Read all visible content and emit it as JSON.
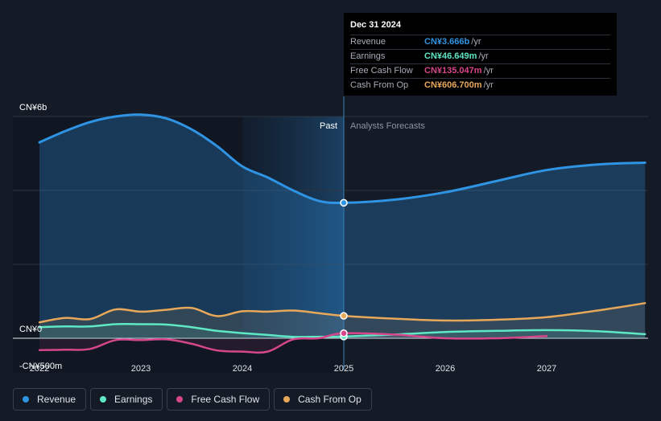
{
  "colors": {
    "background": "#141b26",
    "revenue": "#2f94e3",
    "earnings": "#5ee8c4",
    "free_cash_flow": "#d6468b",
    "cash_from_op": "#e8a85a",
    "past_shade": "#1b3a57",
    "grid": "#2c3440"
  },
  "tooltip": {
    "date": "Dec 31 2024",
    "rows": [
      {
        "name": "Revenue",
        "value": "CN¥3.666b",
        "unit": "/yr",
        "color": "#2f94e3"
      },
      {
        "name": "Earnings",
        "value": "CN¥46.649m",
        "unit": "/yr",
        "color": "#5ee8c4"
      },
      {
        "name": "Free Cash Flow",
        "value": "CN¥135.047m",
        "unit": "/yr",
        "color": "#d6468b"
      },
      {
        "name": "Cash From Op",
        "value": "CN¥606.700m",
        "unit": "/yr",
        "color": "#e8a85a"
      }
    ]
  },
  "legend": [
    {
      "label": "Revenue",
      "color": "#2f94e3"
    },
    {
      "label": "Earnings",
      "color": "#5ee8c4"
    },
    {
      "label": "Free Cash Flow",
      "color": "#d6468b"
    },
    {
      "label": "Cash From Op",
      "color": "#e8a85a"
    }
  ],
  "chart_data": {
    "type": "line",
    "title": "",
    "xlabel": "",
    "ylabel": "",
    "y_unit": "CN¥ billions",
    "xlim": [
      2021.9,
      2027.97
    ],
    "ylim": [
      -0.5,
      6
    ],
    "y_tick_labels": [
      {
        "value": 6,
        "label": "CN¥6b"
      },
      {
        "value": 0,
        "label": "CN¥0"
      },
      {
        "value": -0.5,
        "label": "-CN¥500m"
      }
    ],
    "gridlines_y": [
      6,
      4,
      2,
      0
    ],
    "x_ticks": [
      {
        "value": 2022,
        "label": "2022"
      },
      {
        "value": 2023,
        "label": "2023"
      },
      {
        "value": 2024,
        "label": "2024"
      },
      {
        "value": 2025,
        "label": "2025"
      },
      {
        "value": 2026,
        "label": "2026"
      },
      {
        "value": 2027,
        "label": "2027"
      }
    ],
    "divider_x": 2025,
    "highlight_band": [
      2024,
      2025
    ],
    "past_label": "Past",
    "forecast_label": "Analysts Forecasts",
    "legend_position": "bottom-left",
    "grid": true,
    "series": [
      {
        "name": "Revenue",
        "key": "revenue",
        "x": [
          2022.0,
          2022.25,
          2022.5,
          2022.75,
          2023.0,
          2023.25,
          2023.5,
          2023.75,
          2024.0,
          2024.25,
          2024.5,
          2024.75,
          2025.0,
          2025.5,
          2026.0,
          2026.5,
          2027.0,
          2027.5,
          2027.97
        ],
        "y": [
          5.3,
          5.6,
          5.85,
          6.0,
          6.05,
          5.95,
          5.65,
          5.2,
          4.65,
          4.35,
          4.0,
          3.72,
          3.666,
          3.75,
          3.95,
          4.25,
          4.55,
          4.7,
          4.75
        ]
      },
      {
        "name": "Earnings",
        "key": "earnings",
        "x": [
          2022.0,
          2022.25,
          2022.5,
          2022.75,
          2023.0,
          2023.25,
          2023.5,
          2023.75,
          2024.0,
          2024.25,
          2024.5,
          2024.75,
          2025.0,
          2025.5,
          2026.0,
          2026.5,
          2027.0,
          2027.5,
          2027.97
        ],
        "y": [
          0.3,
          0.32,
          0.32,
          0.38,
          0.38,
          0.37,
          0.3,
          0.2,
          0.14,
          0.09,
          0.04,
          0.04,
          0.046649,
          0.1,
          0.17,
          0.2,
          0.22,
          0.19,
          0.11
        ]
      },
      {
        "name": "Free Cash Flow",
        "key": "free_cash_flow",
        "x": [
          2022.0,
          2022.25,
          2022.5,
          2022.75,
          2023.0,
          2023.25,
          2023.5,
          2023.75,
          2024.0,
          2024.25,
          2024.5,
          2024.75,
          2025.0,
          2025.5,
          2026.0,
          2026.5,
          2027.0
        ],
        "y": [
          -0.32,
          -0.31,
          -0.29,
          -0.05,
          -0.05,
          -0.03,
          -0.15,
          -0.33,
          -0.36,
          -0.36,
          -0.03,
          0.0,
          0.135047,
          0.1,
          0.0,
          0.0,
          0.06
        ]
      },
      {
        "name": "Cash From Op",
        "key": "cash_from_op",
        "x": [
          2022.0,
          2022.25,
          2022.5,
          2022.75,
          2023.0,
          2023.25,
          2023.5,
          2023.75,
          2024.0,
          2024.25,
          2024.5,
          2024.75,
          2025.0,
          2025.5,
          2026.0,
          2026.5,
          2027.0,
          2027.5,
          2027.97
        ],
        "y": [
          0.43,
          0.55,
          0.52,
          0.78,
          0.72,
          0.77,
          0.82,
          0.6,
          0.73,
          0.72,
          0.75,
          0.68,
          0.6067,
          0.53,
          0.48,
          0.5,
          0.57,
          0.75,
          0.95
        ]
      }
    ],
    "highlight_points_x": 2025
  }
}
